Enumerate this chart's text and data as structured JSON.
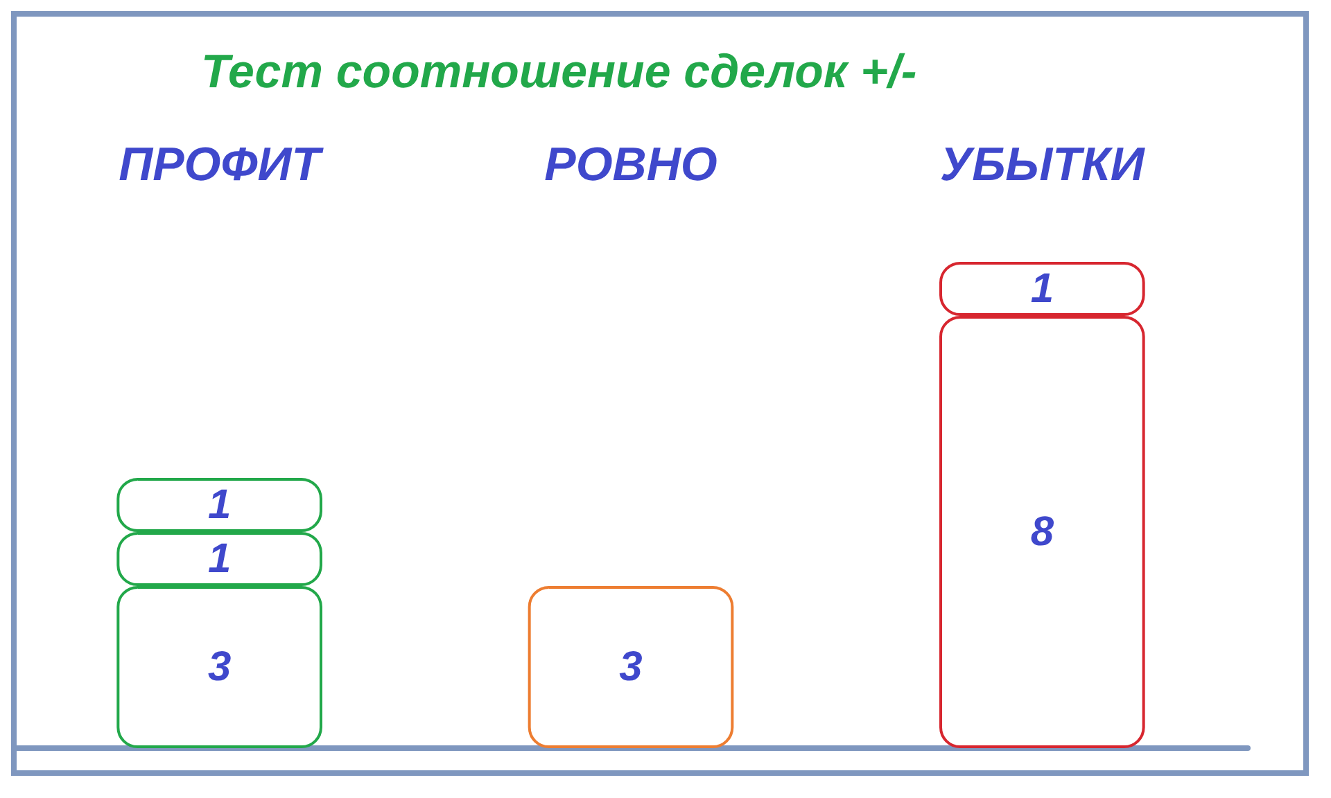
{
  "chart_data": {
    "type": "bar",
    "title": "Тест соотношение сделок +/-",
    "categories": [
      "ПРОФИТ",
      "РОВНО",
      "УБЫТКИ"
    ],
    "series": [
      {
        "values": [
          3,
          3,
          8
        ],
        "colors": [
          "#22a84a",
          "#ed7d31",
          "#d7262f"
        ]
      },
      {
        "values": [
          1,
          null,
          1
        ],
        "colors": [
          "#22a84a",
          null,
          "#d7262f"
        ]
      },
      {
        "values": [
          1,
          null,
          null
        ],
        "colors": [
          "#22a84a",
          null,
          null
        ]
      }
    ],
    "stacked": true,
    "data_labels": true
  }
}
